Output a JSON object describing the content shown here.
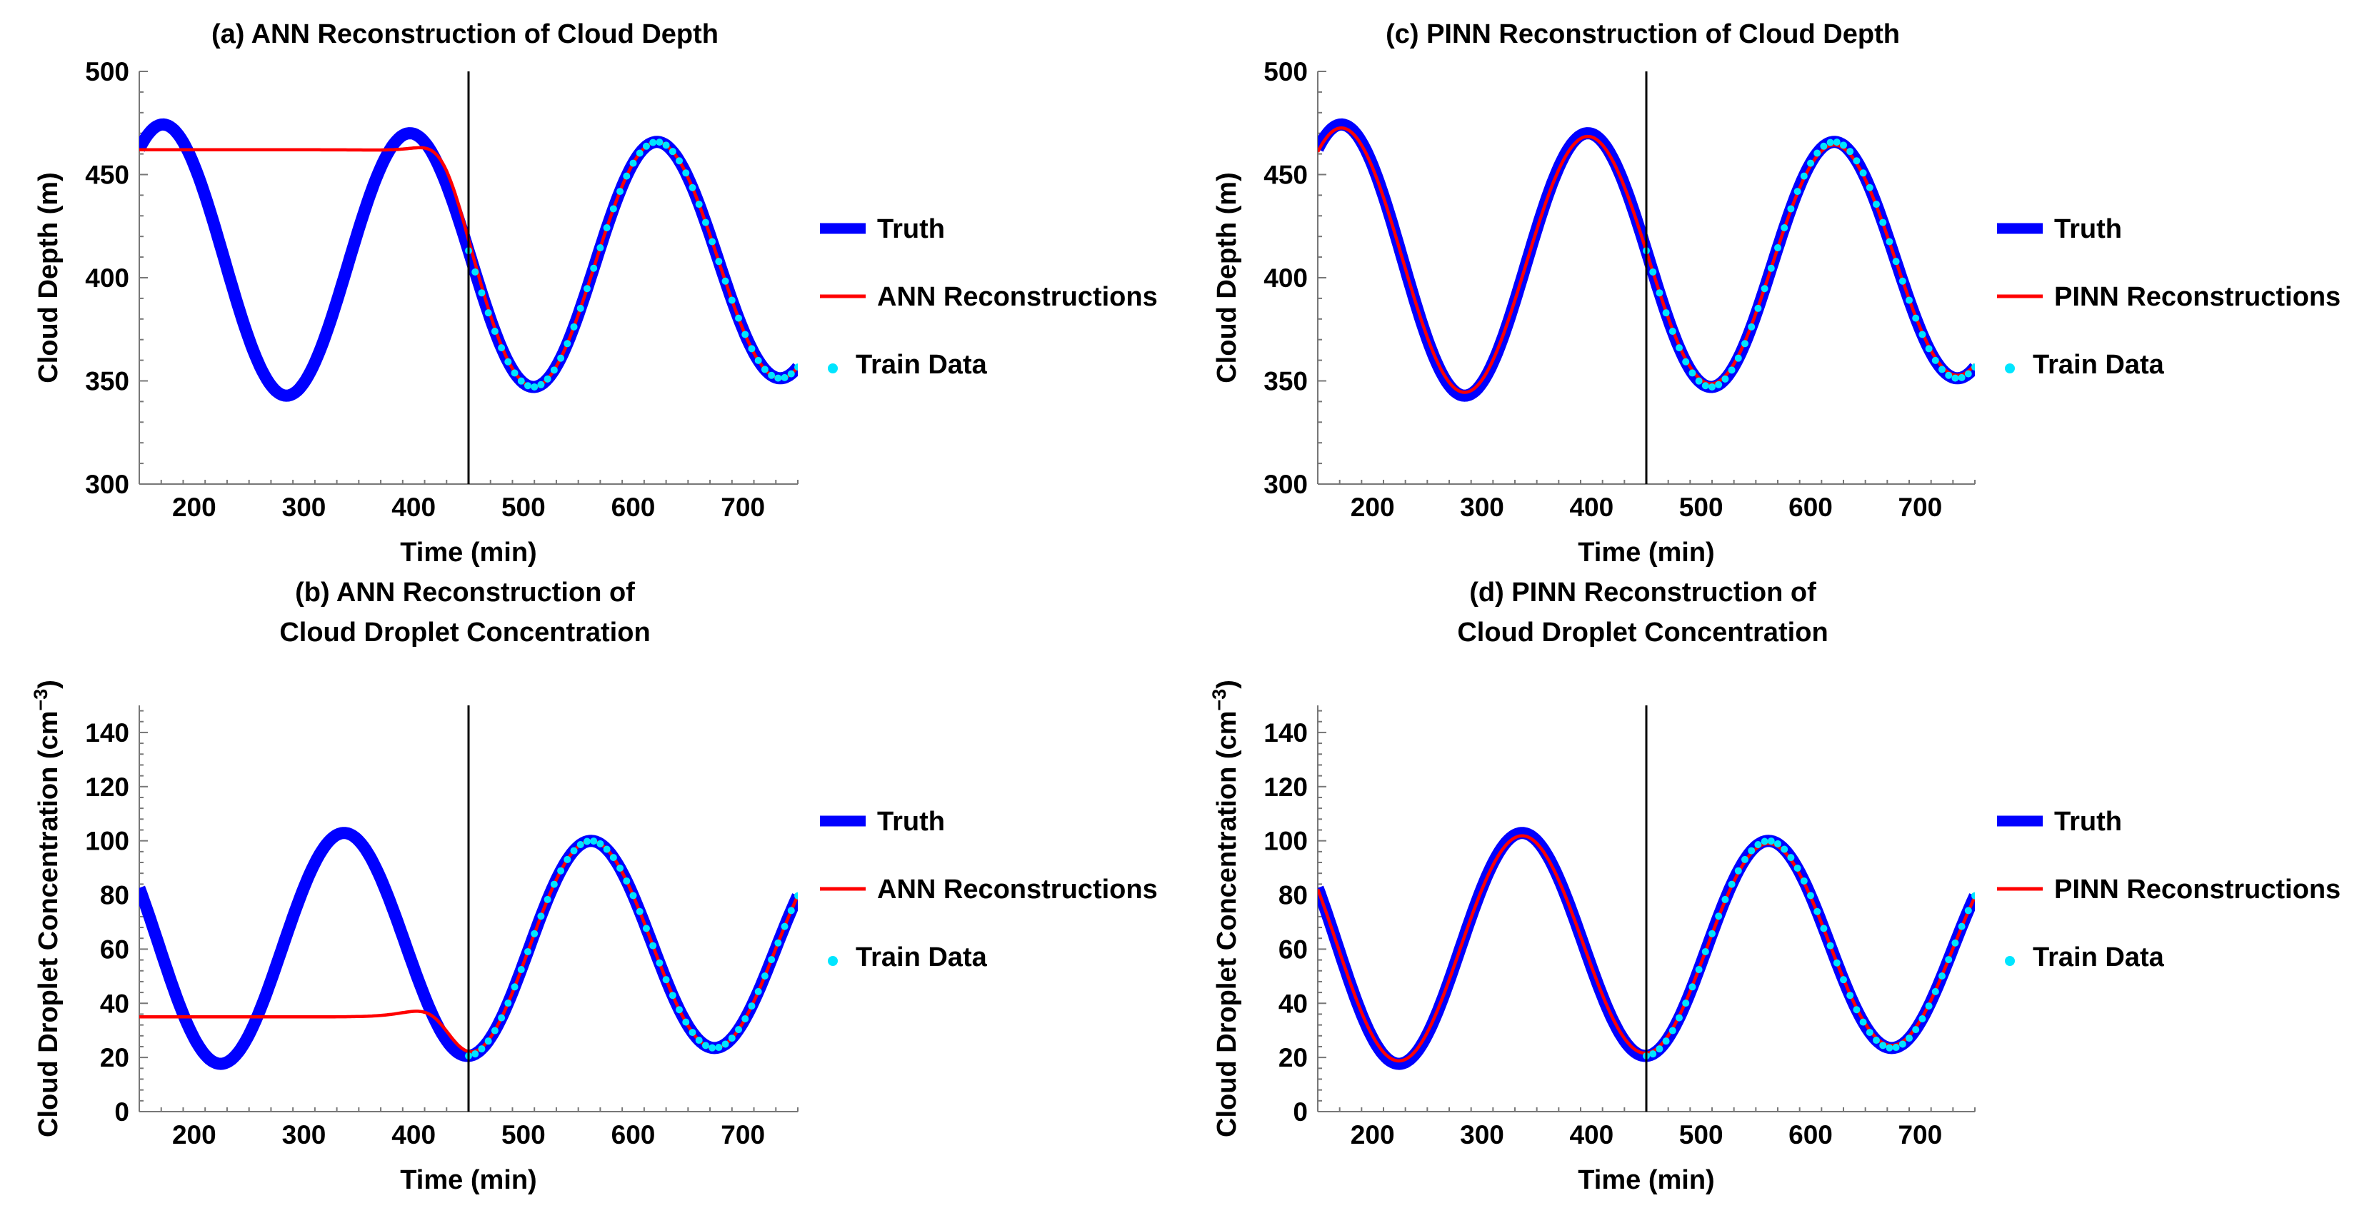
{
  "chart_data": [
    {
      "id": "a",
      "type": "line",
      "title_lines": [
        "(a) ANN Reconstruction of Cloud Depth"
      ],
      "xlabel": "Time (min)",
      "ylabel": "Cloud Depth (m)",
      "xlim": [
        150,
        750
      ],
      "ylim": [
        300,
        500
      ],
      "xticks": [
        200,
        300,
        400,
        500,
        600,
        700
      ],
      "yticks": [
        300,
        350,
        400,
        450,
        500
      ],
      "vline_x": 450,
      "truth": {
        "mean": 407.5,
        "amplitude": 62.5,
        "t_peak": 172,
        "period": 225,
        "decay": 0.18,
        "decay_origin": 400
      },
      "reconstruction": {
        "mode": "ann",
        "flat_value": 462,
        "blend_center": 425,
        "blend_width": 12
      },
      "train_data": {
        "x_start": 450,
        "x_end": 750,
        "step": 6
      },
      "legend": [
        {
          "label": "Truth",
          "style": "truth",
          "color": "#0000ff"
        },
        {
          "label": "ANN Reconstructions",
          "style": "recon",
          "color": "#ff0000"
        },
        {
          "label": "Train Data",
          "style": "points",
          "color": "#00e5ff"
        }
      ]
    },
    {
      "id": "b",
      "type": "line",
      "title_lines": [
        "(b) ANN Reconstruction of",
        "Cloud Droplet Concentration"
      ],
      "xlabel": "Time (min)",
      "ylabel": "Cloud Droplet Concentration (cm",
      "ylabel_sup": "−3",
      "ylabel_close": ")",
      "xlim": [
        150,
        750
      ],
      "ylim": [
        0,
        150
      ],
      "xticks": [
        200,
        300,
        400,
        500,
        600,
        700
      ],
      "yticks": [
        0,
        20,
        40,
        60,
        80,
        100,
        120,
        140
      ],
      "vline_x": 450,
      "truth": {
        "mean": 61,
        "amplitude": 39,
        "t_peak": 337,
        "period": 225,
        "decay": 0.2,
        "decay_origin": 560
      },
      "reconstruction": {
        "mode": "ann",
        "flat_value": 35,
        "blend_center": 425,
        "blend_width": 12
      },
      "train_data": {
        "x_start": 450,
        "x_end": 750,
        "step": 6
      },
      "legend": [
        {
          "label": "Truth",
          "style": "truth",
          "color": "#0000ff"
        },
        {
          "label": "ANN Reconstructions",
          "style": "recon",
          "color": "#ff0000"
        },
        {
          "label": "Train Data",
          "style": "points",
          "color": "#00e5ff"
        }
      ]
    },
    {
      "id": "c",
      "type": "line",
      "title_lines": [
        "(c) PINN Reconstruction of Cloud Depth"
      ],
      "xlabel": "Time (min)",
      "ylabel": "Cloud Depth (m)",
      "xlim": [
        150,
        750
      ],
      "ylim": [
        300,
        500
      ],
      "xticks": [
        200,
        300,
        400,
        500,
        600,
        700
      ],
      "yticks": [
        300,
        350,
        400,
        450,
        500
      ],
      "vline_x": 450,
      "truth": {
        "mean": 407.5,
        "amplitude": 62.5,
        "t_peak": 172,
        "period": 225,
        "decay": 0.18,
        "decay_origin": 400
      },
      "reconstruction": {
        "mode": "pinn",
        "scale": 0.975
      },
      "train_data": {
        "x_start": 450,
        "x_end": 750,
        "step": 6
      },
      "legend": [
        {
          "label": "Truth",
          "style": "truth",
          "color": "#0000ff"
        },
        {
          "label": "PINN Reconstructions",
          "style": "recon",
          "color": "#ff0000"
        },
        {
          "label": "Train Data",
          "style": "points",
          "color": "#00e5ff"
        }
      ]
    },
    {
      "id": "d",
      "type": "line",
      "title_lines": [
        "(d) PINN Reconstruction of",
        "Cloud Droplet Concentration"
      ],
      "xlabel": "Time (min)",
      "ylabel": "Cloud Droplet Concentration (cm",
      "ylabel_sup": "−3",
      "ylabel_close": ")",
      "xlim": [
        150,
        750
      ],
      "ylim": [
        0,
        150
      ],
      "xticks": [
        200,
        300,
        400,
        500,
        600,
        700
      ],
      "yticks": [
        0,
        20,
        40,
        60,
        80,
        100,
        120,
        140
      ],
      "vline_x": 450,
      "truth": {
        "mean": 61,
        "amplitude": 39,
        "t_peak": 337,
        "period": 225,
        "decay": 0.2,
        "decay_origin": 560
      },
      "reconstruction": {
        "mode": "pinn",
        "scale": 0.975
      },
      "train_data": {
        "x_start": 450,
        "x_end": 750,
        "step": 6
      },
      "legend": [
        {
          "label": "Truth",
          "style": "truth",
          "color": "#0000ff"
        },
        {
          "label": "PINN Reconstructions",
          "style": "recon",
          "color": "#ff0000"
        },
        {
          "label": "Train Data",
          "style": "points",
          "color": "#00e5ff"
        }
      ]
    }
  ]
}
